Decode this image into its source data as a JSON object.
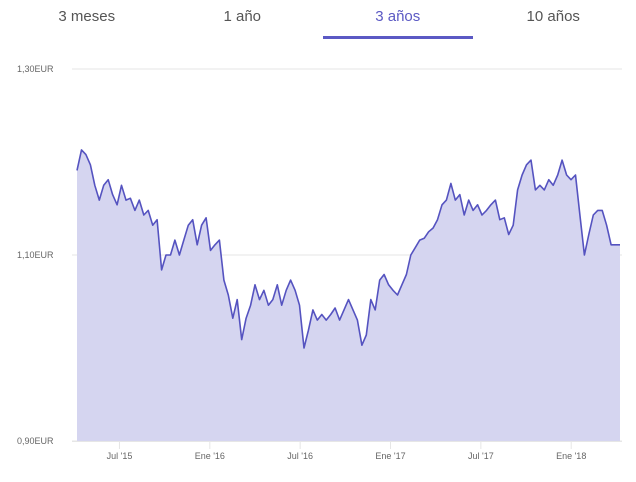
{
  "tabs": [
    {
      "label": "3 meses",
      "active": false
    },
    {
      "label": "1 año",
      "active": false
    },
    {
      "label": "3 años",
      "active": true
    },
    {
      "label": "10 años",
      "active": false
    }
  ],
  "colors": {
    "accent": "#5b59c4",
    "line": "#5553c0",
    "fill": "#d5d5f0"
  },
  "chart_data": {
    "type": "area",
    "title": "",
    "xlabel": "",
    "ylabel": "",
    "ylim": [
      0.9,
      1.3
    ],
    "xlim": [
      2015.265,
      2018.27
    ],
    "yticks": [
      {
        "value": 1.3,
        "label": "1,30EUR"
      },
      {
        "value": 1.1,
        "label": "1,10EUR"
      },
      {
        "value": 0.9,
        "label": "0,90EUR"
      }
    ],
    "xticks": [
      {
        "value": 2015.5,
        "label": "Jul '15"
      },
      {
        "value": 2016.0,
        "label": "Ene '16"
      },
      {
        "value": 2016.5,
        "label": "Jul '16"
      },
      {
        "value": 2017.0,
        "label": "Ene '17"
      },
      {
        "value": 2017.5,
        "label": "Jul '17"
      },
      {
        "value": 2018.0,
        "label": "Ene '18"
      }
    ],
    "grid": true,
    "series": [
      {
        "name": "EUR",
        "values": [
          1.191,
          1.213,
          1.208,
          1.197,
          1.175,
          1.159,
          1.175,
          1.181,
          1.165,
          1.154,
          1.175,
          1.159,
          1.161,
          1.148,
          1.159,
          1.143,
          1.148,
          1.132,
          1.138,
          1.084,
          1.1,
          1.1,
          1.116,
          1.1,
          1.116,
          1.132,
          1.138,
          1.111,
          1.132,
          1.14,
          1.105,
          1.111,
          1.116,
          1.073,
          1.057,
          1.032,
          1.052,
          1.009,
          1.032,
          1.046,
          1.068,
          1.052,
          1.062,
          1.046,
          1.052,
          1.068,
          1.046,
          1.062,
          1.073,
          1.062,
          1.046,
          1.0,
          1.019,
          1.041,
          1.03,
          1.036,
          1.03,
          1.036,
          1.043,
          1.03,
          1.041,
          1.052,
          1.041,
          1.03,
          1.003,
          1.014,
          1.052,
          1.041,
          1.073,
          1.079,
          1.068,
          1.062,
          1.057,
          1.068,
          1.079,
          1.1,
          1.108,
          1.116,
          1.118,
          1.125,
          1.129,
          1.138,
          1.154,
          1.159,
          1.177,
          1.159,
          1.165,
          1.143,
          1.159,
          1.148,
          1.154,
          1.143,
          1.148,
          1.154,
          1.159,
          1.138,
          1.14,
          1.122,
          1.132,
          1.17,
          1.186,
          1.197,
          1.202,
          1.17,
          1.175,
          1.17,
          1.181,
          1.175,
          1.186,
          1.202,
          1.186,
          1.181,
          1.186,
          1.143,
          1.1,
          1.122,
          1.143,
          1.148,
          1.148,
          1.132,
          1.111,
          1.111,
          1.111
        ]
      }
    ]
  }
}
